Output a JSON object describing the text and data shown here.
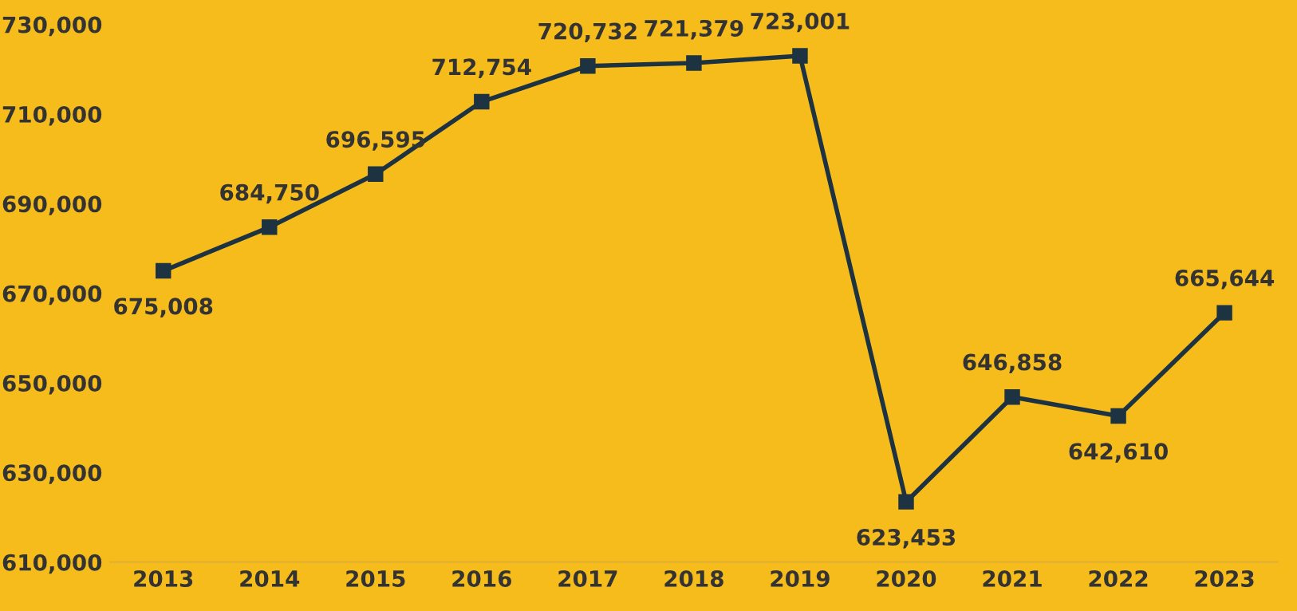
{
  "chart_data": {
    "type": "line",
    "categories": [
      "2013",
      "2014",
      "2015",
      "2016",
      "2017",
      "2018",
      "2019",
      "2020",
      "2021",
      "2022",
      "2023"
    ],
    "series": [
      {
        "color": "#1e3342",
        "values": [
          675008,
          684750,
          696595,
          712754,
          720732,
          721379,
          723001,
          623453,
          646858,
          642610,
          665644
        ],
        "value_labels": [
          "675,008",
          "684,750",
          "696,595",
          "712,754",
          "720,732",
          "721,379",
          "723,001",
          "623,453",
          "646,858",
          "642,610",
          "665,644"
        ]
      }
    ],
    "ylim": [
      610000,
      730000
    ],
    "yticks": [
      {
        "value": 610000,
        "label": "610,000"
      },
      {
        "value": 630000,
        "label": "630,000"
      },
      {
        "value": 650000,
        "label": "650,000"
      },
      {
        "value": 670000,
        "label": "670,000"
      },
      {
        "value": 690000,
        "label": "690,000"
      },
      {
        "value": 710000,
        "label": "710,000"
      },
      {
        "value": 730000,
        "label": "730,000"
      }
    ],
    "grid": false,
    "legend": false,
    "marker": "square",
    "line_style": "solid"
  }
}
